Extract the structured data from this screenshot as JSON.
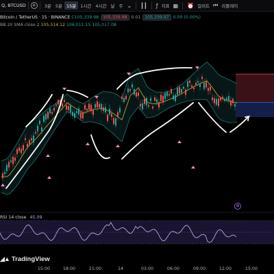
{
  "toolbar": {
    "symbol": "Q, BTCUSD",
    "timeframes": [
      "3분",
      "5분",
      "15분",
      "1시간",
      "4시간",
      "날",
      "주"
    ],
    "active_timeframe": "15분",
    "indicators_label": "지표",
    "alert_label": "얼러트",
    "replay_label": "리플레이"
  },
  "legend": {
    "title": "Bitcoin / TetherUS · 15 · BINANCE",
    "ohlc": "C105,339.98",
    "sell_price": "105,339.98",
    "buy_price": "105,339.97",
    "change": "0.00 (0.00%)",
    "bb_label": "BB 20 SMA close 2",
    "bb_basis": "105,514.12",
    "bb_upper": "106,011.15",
    "bb_lower": "105,017.08"
  },
  "rsi": {
    "label": "RSI 14 close",
    "value": "45.09"
  },
  "brand": {
    "name": "TradingView"
  },
  "time_axis": [
    "15:00",
    "18:00",
    "21:00",
    "14",
    "03:00",
    "06:00",
    "09:00",
    "12:00",
    "15:00"
  ],
  "colors": {
    "up": "#26a69a",
    "down": "#ef5350",
    "bb_basis": "#c9b537",
    "bb_band": "#1e7a6e",
    "rsi": "#b9a7e8",
    "annotation": "#ffffff",
    "marker": "#f48fb1",
    "sell_zone": "#3c1418",
    "buy_zone": "#14214a"
  },
  "icons": [
    "plus-circle-icon",
    "chart-type-icon",
    "indicator-icon",
    "alert-icon",
    "replay-icon",
    "tradingview-logo"
  ]
}
